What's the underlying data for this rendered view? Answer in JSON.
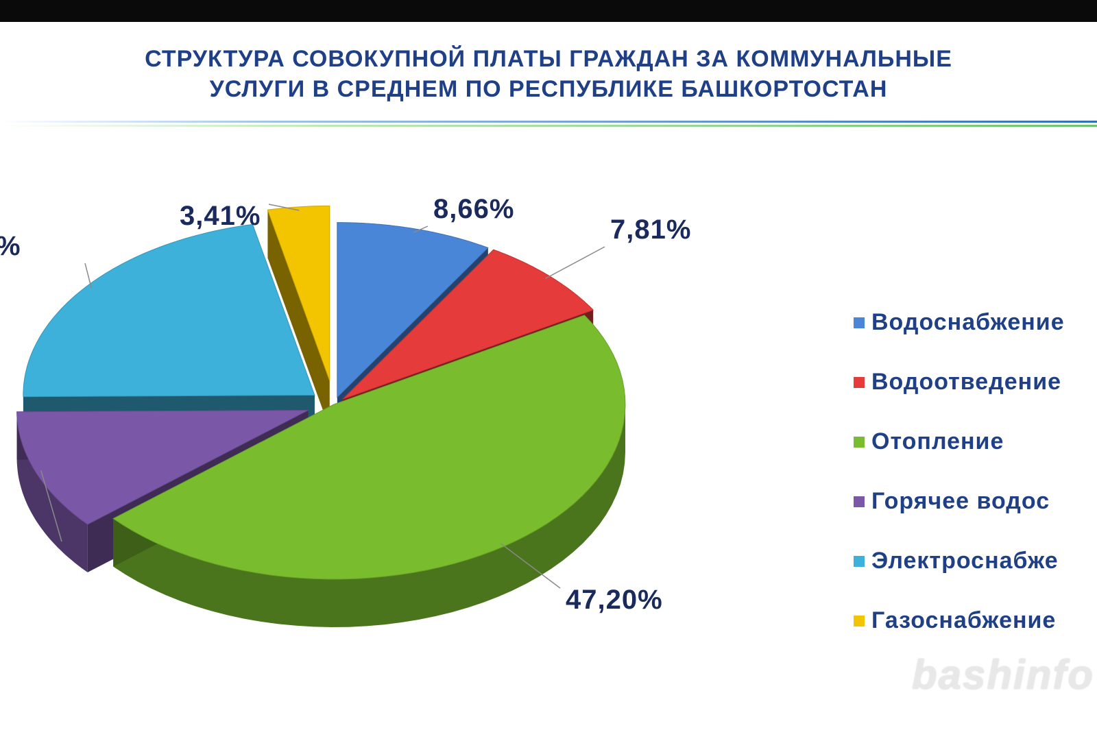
{
  "title_line1": "СТРУКТУРА СОВОКУПНОЙ ПЛАТЫ ГРАЖДАН ЗА КОММУНАЛЬНЫЕ",
  "title_line2": "УСЛУГИ В СРЕДНЕМ ПО РЕСПУБЛИКЕ БАШКОРТОСТАН",
  "watermark": "bashinfo",
  "colors": {
    "title": "#1f3f86",
    "rule_blue": "#2f6fb8",
    "rule_green": "#6cc46a"
  },
  "chart_data": {
    "type": "pie",
    "title": "СТРУКТУРА СОВОКУПНОЙ ПЛАТЫ ГРАЖДАН ЗА КОММУНАЛЬНЫЕ УСЛУГИ В СРЕДНЕМ ПО РЕСПУБЛИКЕ БАШКОРТОСТАН",
    "legend_position": "right",
    "slices": [
      {
        "name": "Водоснабжение",
        "legend_text": "Водоснабжение",
        "value": 8.66,
        "label": "8,66%",
        "color": "#4a86d8"
      },
      {
        "name": "Водоотведение",
        "legend_text": "Водоотведение",
        "value": 7.81,
        "label": "7,81%",
        "color": "#e63b3b"
      },
      {
        "name": "Отопление",
        "legend_text": "Отопление",
        "value": 47.2,
        "label": "47,20%",
        "color": "#79bd2f"
      },
      {
        "name": "Горячее водоснабжение",
        "legend_text": "Горячее  водос",
        "value": null,
        "label": "",
        "color": "#7b57a7"
      },
      {
        "name": "Электроснабжение",
        "legend_text": "Электроснабже",
        "value": null,
        "label": "%",
        "color": "#3db1d9"
      },
      {
        "name": "Газоснабжение",
        "legend_text": "Газоснабжение",
        "value": 3.41,
        "label": "3,41%",
        "color": "#f2c500"
      }
    ]
  }
}
